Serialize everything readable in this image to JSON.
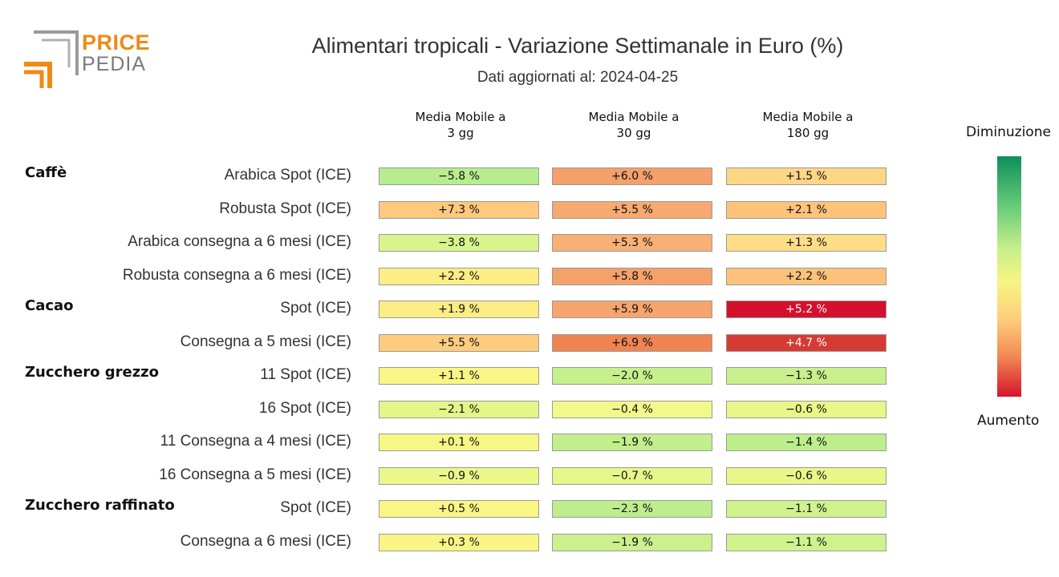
{
  "logo": {
    "line1": "PRICE",
    "line2": "PEDIA"
  },
  "title": "Alimentari tropicali - Variazione Settimanale in Euro (%)",
  "subtitle": "Dati aggiornati al: 2024-04-25",
  "legend": {
    "top": "Diminuzione",
    "bottom": "Aumento"
  },
  "chart_data": {
    "type": "heatmap",
    "title": "Alimentari tropicali - Variazione Settimanale in Euro (%)",
    "columns": [
      "Media Mobile a\n3 gg",
      "Media Mobile a\n30 gg",
      "Media Mobile a\n180 gg"
    ],
    "groups": [
      {
        "name": "Caffè",
        "rows": [
          {
            "label": "Arabica Spot (ICE)",
            "values": [
              "-5.8 %",
              "+6.0 %",
              "+1.5 %"
            ]
          },
          {
            "label": "Robusta Spot (ICE)",
            "values": [
              "+7.3 %",
              "+5.5 %",
              "+2.1 %"
            ]
          },
          {
            "label": "Arabica consegna a 6 mesi (ICE)",
            "values": [
              "-3.8 %",
              "+5.3 %",
              "+1.3 %"
            ]
          },
          {
            "label": "Robusta consegna a 6 mesi (ICE)",
            "values": [
              "+2.2 %",
              "+5.8 %",
              "+2.2 %"
            ]
          }
        ]
      },
      {
        "name": "Cacao",
        "rows": [
          {
            "label": "Spot (ICE)",
            "values": [
              "+1.9 %",
              "+5.9 %",
              "+5.2 %"
            ]
          },
          {
            "label": "Consegna a 5 mesi (ICE)",
            "values": [
              "+5.5 %",
              "+6.9 %",
              "+4.7 %"
            ]
          }
        ]
      },
      {
        "name": "Zucchero grezzo",
        "rows": [
          {
            "label": "11 Spot (ICE)",
            "values": [
              "+1.1 %",
              "-2.0 %",
              "-1.3 %"
            ]
          },
          {
            "label": "16 Spot (ICE)",
            "values": [
              "-2.1 %",
              "-0.4 %",
              "-0.6 %"
            ]
          },
          {
            "label": "11 Consegna a 4 mesi (ICE)",
            "values": [
              "+0.1 %",
              "-1.9 %",
              "-1.4 %"
            ]
          },
          {
            "label": "16 Consegna a 5 mesi (ICE)",
            "values": [
              "-0.9 %",
              "-0.7 %",
              "-0.6 %"
            ]
          }
        ]
      },
      {
        "name": "Zucchero raffinato",
        "rows": [
          {
            "label": "Spot (ICE)",
            "values": [
              "+0.5 %",
              "-2.3 %",
              "-1.1 %"
            ]
          },
          {
            "label": "Consegna a 6 mesi (ICE)",
            "values": [
              "+0.3 %",
              "-1.9 %",
              "-1.1 %"
            ]
          }
        ]
      }
    ],
    "cell_colors": [
      [
        "#b7ed8f",
        "#f4a06a",
        "#fed685"
      ],
      [
        "#fdc97c",
        "#f6a970",
        "#fdc37a"
      ],
      [
        "#d8f48c",
        "#f9b077",
        "#fddd86"
      ],
      [
        "#fcee84",
        "#f5a16b",
        "#fdc27a"
      ],
      [
        "#fced84",
        "#f6a56d",
        "#d5102c"
      ],
      [
        "#fdcd7d",
        "#ef8452",
        "#d63b33"
      ],
      [
        "#f9f685",
        "#c6f08c",
        "#c8f08c"
      ],
      [
        "#e4f58a",
        "#f2f88b",
        "#e9f68a"
      ],
      [
        "#f7f786",
        "#c2ef8c",
        "#bdee8c"
      ],
      [
        "#ecf789",
        "#e7f68a",
        "#e9f68a"
      ],
      [
        "#f9f685",
        "#bded8c",
        "#cff28d"
      ],
      [
        "#f9f584",
        "#cbf08d",
        "#cff28d"
      ]
    ]
  }
}
